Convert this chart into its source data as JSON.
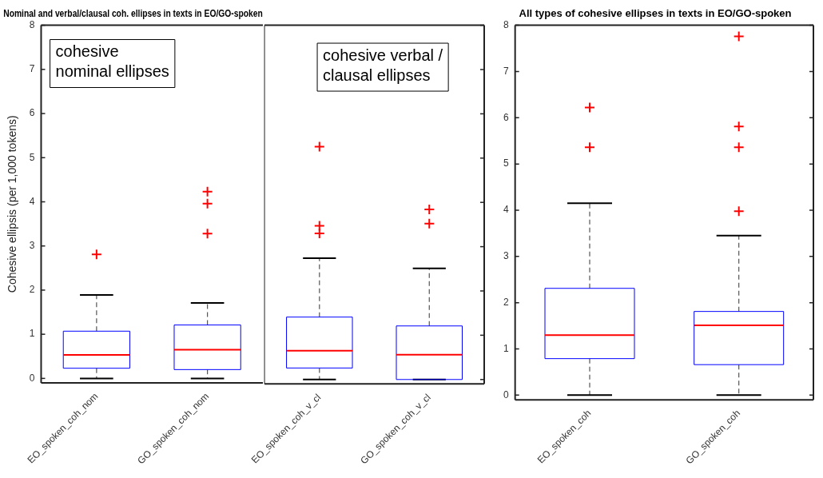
{
  "chart_data": [
    {
      "type": "box",
      "title": "Nominal and verbal/clausal coh. ellipses in texts in EO/GO-spoken",
      "ylabel": "Cohesive ellipsis (per 1,000 tokens)",
      "categories": [
        "EO_spoken_coh_nom",
        "GO_spoken_coh_nom"
      ],
      "ylim": [
        -0.1,
        8
      ],
      "yticks": [
        0,
        1,
        2,
        3,
        4,
        5,
        6,
        7,
        8
      ],
      "grid": false,
      "legend": false,
      "marker": "cross",
      "annotations": [
        "cohesive nominal ellipses"
      ],
      "series": [
        {
          "color": "#0000ff",
          "boxes": [
            {
              "low": 0,
              "q1": 0.23,
              "median": 0.53,
              "q3": 1.07,
              "high": 1.89,
              "outliers": [
                2.81
              ]
            },
            {
              "low": 0,
              "q1": 0.2,
              "median": 0.65,
              "q3": 1.21,
              "high": 1.71,
              "outliers": [
                4.23,
                3.96,
                3.28
              ]
            }
          ]
        }
      ]
    },
    {
      "type": "box",
      "categories": [
        "EO_spoken_coh_v_cl",
        "GO_spoken_coh_v_cl"
      ],
      "ylim": [
        -0.1,
        8
      ],
      "yticks": [
        0,
        1,
        2,
        3,
        4,
        5,
        6,
        7,
        8
      ],
      "tick_labels": "x",
      "grid": false,
      "legend": false,
      "marker": "cross",
      "annotations": [
        "cohesive verbal / clausal ellipses"
      ],
      "series": [
        {
          "color": "#0000ff",
          "boxes": [
            {
              "low": 0,
              "q1": 0.26,
              "median": 0.65,
              "q3": 1.41,
              "high": 2.74,
              "outliers": [
                5.26,
                3.47,
                3.3
              ]
            },
            {
              "low": 0,
              "q1": 0,
              "median": 0.56,
              "q3": 1.21,
              "high": 2.51,
              "outliers": [
                3.84,
                3.52
              ]
            }
          ]
        }
      ]
    },
    {
      "type": "box",
      "title": "All types of cohesive ellipses in texts in EO/GO-spoken",
      "categories": [
        "EO_spoken_coh",
        "GO_spoken_coh"
      ],
      "ylim": [
        -0.1,
        8
      ],
      "yticks": [
        0,
        1,
        2,
        3,
        4,
        5,
        6,
        7,
        8
      ],
      "grid": false,
      "legend": false,
      "marker": "cross",
      "series": [
        {
          "color": "#0000ff",
          "boxes": [
            {
              "low": 0,
              "q1": 0.79,
              "median": 1.3,
              "q3": 2.31,
              "high": 4.15,
              "outliers": [
                6.22,
                5.36
              ]
            },
            {
              "low": 0,
              "q1": 0.66,
              "median": 1.51,
              "q3": 1.81,
              "high": 3.45,
              "outliers": [
                7.76,
                5.81,
                5.36,
                3.98
              ]
            }
          ]
        }
      ]
    }
  ]
}
